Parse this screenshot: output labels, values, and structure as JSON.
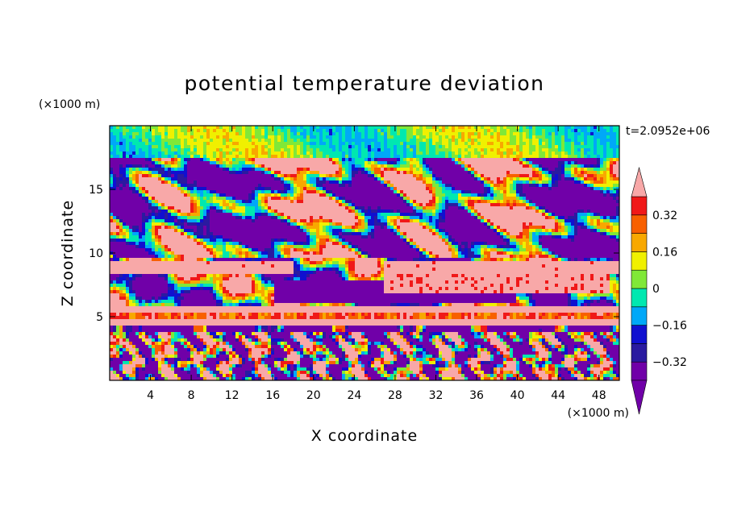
{
  "chart_data": {
    "type": "heatmap",
    "title": "potential temperature deviation",
    "xlabel": "X coordinate",
    "ylabel": "Z coordinate",
    "x_unit": "(×1000 m)",
    "y_unit": "(×1000 m)",
    "time_label": "t=2.0952e+06",
    "xlim": [
      0,
      50
    ],
    "ylim": [
      0,
      20
    ],
    "xticks": [
      4,
      8,
      12,
      16,
      20,
      24,
      28,
      32,
      36,
      40,
      44,
      48
    ],
    "xtick_labels": [
      "4",
      "8",
      "12",
      "16",
      "20",
      "24",
      "28",
      "32",
      "36",
      "40",
      "44",
      "48"
    ],
    "yticks": [
      5,
      10,
      15
    ],
    "ytick_labels": [
      "5",
      "10",
      "15"
    ],
    "colorbar": {
      "levels": [
        -0.4,
        -0.32,
        -0.24,
        -0.16,
        -0.08,
        0,
        0.08,
        0.16,
        0.24,
        0.32,
        0.4
      ],
      "tick_values": [
        -0.32,
        -0.16,
        0,
        0.16,
        0.32
      ],
      "tick_labels": [
        "−0.32",
        "−0.16",
        "0",
        "0.16",
        "0.32"
      ],
      "colors": [
        "#7000a8",
        "#2a1aa0",
        "#1010d0",
        "#00a8f8",
        "#00e8b0",
        "#80e838",
        "#f0f000",
        "#f8a800",
        "#f86000",
        "#f01818",
        "#f8a8a8"
      ],
      "extend": "both"
    }
  }
}
